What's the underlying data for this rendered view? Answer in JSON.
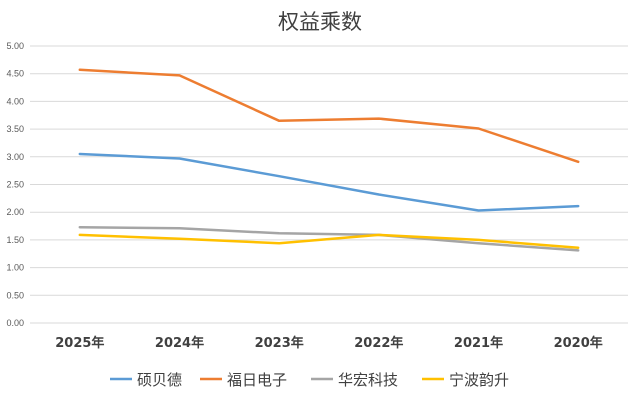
{
  "chart_data": {
    "type": "line",
    "title": "权益乘数",
    "xlabel": "",
    "ylabel": "",
    "categories": [
      "2025年",
      "2024年",
      "2023年",
      "2022年",
      "2021年",
      "2020年"
    ],
    "ylim": [
      0,
      5
    ],
    "ytick_step": 0.5,
    "yticks": [
      "0.00",
      "0.50",
      "1.00",
      "1.50",
      "2.00",
      "2.50",
      "3.00",
      "3.50",
      "4.00",
      "4.50",
      "5.00"
    ],
    "grid": true,
    "legend_position": "bottom",
    "series": [
      {
        "name": "硕贝德",
        "color": "#5b9bd5",
        "values": [
          3.05,
          2.97,
          2.65,
          2.32,
          2.03,
          2.11
        ]
      },
      {
        "name": "福日电子",
        "color": "#ed7d31",
        "values": [
          4.57,
          4.47,
          3.65,
          3.69,
          3.51,
          2.91
        ]
      },
      {
        "name": "华宏科技",
        "color": "#a5a5a5",
        "values": [
          1.73,
          1.71,
          1.62,
          1.59,
          1.44,
          1.31
        ]
      },
      {
        "name": "宁波韵升",
        "color": "#ffc000",
        "values": [
          1.59,
          1.52,
          1.44,
          1.59,
          1.5,
          1.36
        ]
      }
    ]
  }
}
